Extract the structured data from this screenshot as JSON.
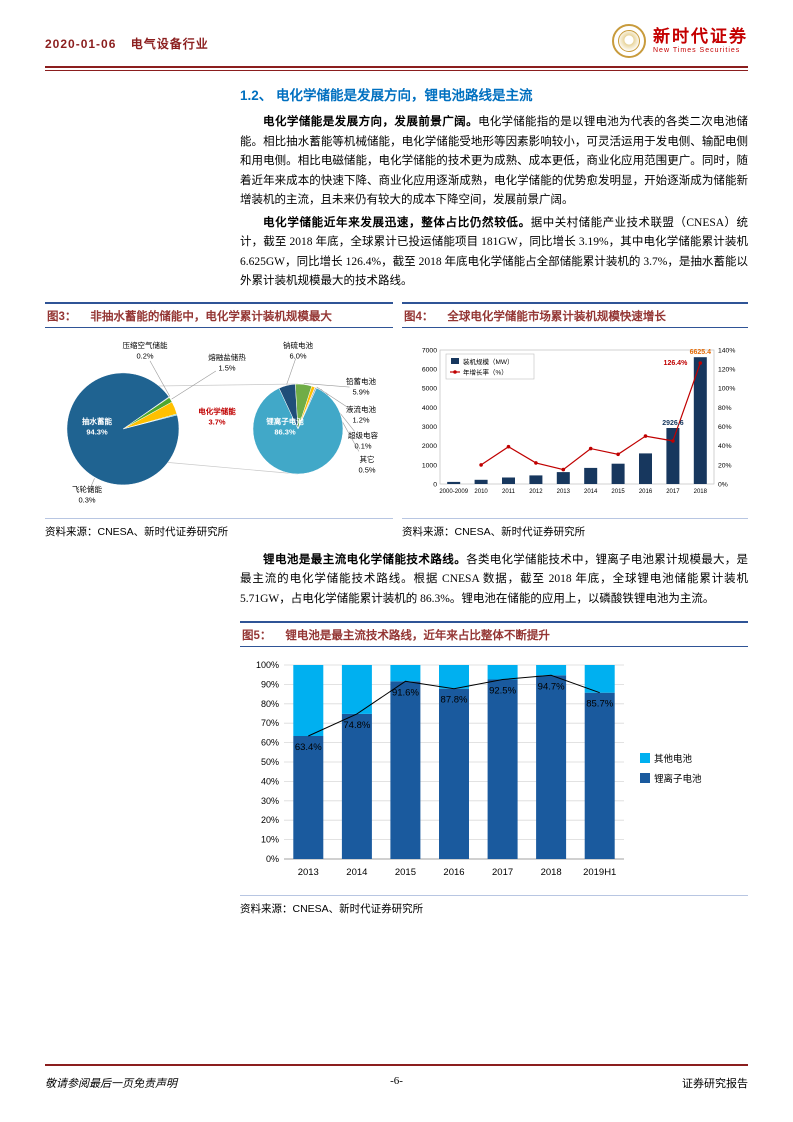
{
  "header": {
    "date": "2020-01-06",
    "industry": "电气设备行业",
    "brand": "新时代证券",
    "brand_en": "New Times Securities"
  },
  "section": {
    "number": "1.2、",
    "title": "电化学储能是发展方向，锂电池路线是主流"
  },
  "paragraphs": [
    {
      "lead": "电化学储能是发展方向，发展前景广阔。",
      "text": "电化学储能指的是以锂电池为代表的各类二次电池储能。相比抽水蓄能等机械储能，电化学储能受地形等因素影响较小，可灵活运用于发电侧、输配电侧和用电侧。相比电磁储能，电化学储能的技术更为成熟、成本更低，商业化应用范围更广。同时，随着近年来成本的快速下降、商业化应用逐渐成熟，电化学储能的优势愈发明显，开始逐渐成为储能新增装机的主流，且未来仍有较大的成本下降空间，发展前景广阔。"
    },
    {
      "lead": "电化学储能近年来发展迅速，整体占比仍然较低。",
      "text": "据中关村储能产业技术联盟（CNESA）统计，截至 2018 年底，全球累计已投运储能项目 181GW，同比增长 3.19%，其中电化学储能累计装机 6.625GW，同比增长 126.4%，截至 2018 年底电化学储能占全部储能累计装机的 3.7%，是抽水蓄能以外累计装机规模最大的技术路线。"
    },
    {
      "lead": "锂电池是最主流电化学储能技术路线。",
      "text": "各类电化学储能技术中，锂离子电池累计规模最大，是最主流的电化学储能技术路线。根据 CNESA 数据，截至 2018 年底，全球锂电池储能累计装机 5.71GW，占电化学储能累计装机的 86.3%。锂电池在储能的应用上，以磷酸铁锂电池为主流。"
    }
  ],
  "figures": {
    "fig3": {
      "label": "图3：",
      "title": "非抽水蓄能的储能中，电化学累计装机规模最大",
      "source": "资料来源：CNESA、新时代证券研究所"
    },
    "fig4": {
      "label": "图4：",
      "title": "全球电化学储能市场累计装机规模快速增长",
      "source": "资料来源：CNESA、新时代证券研究所"
    },
    "fig5": {
      "label": "图5：",
      "title": "锂电池是最主流技术路线，近年来占比整体不断提升",
      "source": "资料来源：CNESA、新时代证券研究所"
    }
  },
  "chart_data": [
    {
      "type": "pie",
      "figure": "图3",
      "slices": [
        {
          "label": "压缩空气储能",
          "value": 0.2,
          "pct": "0.2%",
          "color": "#A6A6A6"
        },
        {
          "label": "熔融盐储热",
          "value": 1.5,
          "pct": "1.5%",
          "color": "#4EA72E"
        },
        {
          "label": "电化学储能",
          "value": 3.7,
          "pct": "3.7%",
          "color": "#FFC000"
        },
        {
          "label": "飞轮储能",
          "value": 0.3,
          "pct": "0.3%",
          "color": "#31B6C4"
        },
        {
          "label": "抽水蓄能",
          "value": 94.3,
          "pct": "94.3%",
          "color": "#1F6391"
        }
      ]
    },
    {
      "type": "pie",
      "figure": "图3",
      "slices": [
        {
          "label": "钠硫电池",
          "value": 6.0,
          "pct": "6.0%",
          "color": "#1F4E79"
        },
        {
          "label": "铅蓄电池",
          "value": 5.9,
          "pct": "5.9%",
          "color": "#70AD47"
        },
        {
          "label": "液流电池",
          "value": 1.2,
          "pct": "1.2%",
          "color": "#FFC000"
        },
        {
          "label": "超级电容",
          "value": 0.1,
          "pct": "0.1%",
          "color": "#ED7D31"
        },
        {
          "label": "其它",
          "value": 0.5,
          "pct": "0.5%",
          "color": "#A6A6A6"
        },
        {
          "label": "锂离子电池",
          "value": 86.3,
          "pct": "86.3%",
          "color": "#41A8C8"
        }
      ]
    },
    {
      "type": "bar+line",
      "figure": "图4",
      "categories": [
        "2000-2009",
        "2010",
        "2011",
        "2012",
        "2013",
        "2014",
        "2015",
        "2016",
        "2017",
        "2018"
      ],
      "series": [
        {
          "name": "装机规模（MW）",
          "kind": "bar",
          "axis": "left",
          "color": "#17375E",
          "values": [
            110,
            220,
            340,
            450,
            620,
            840,
            1060,
            1600,
            2926.6,
            6625.4
          ]
        },
        {
          "name": "年增长率（%）",
          "kind": "line",
          "axis": "right",
          "color": "#C00000",
          "values": [
            null,
            20,
            39,
            22,
            15,
            37,
            31,
            50,
            45,
            126.4
          ]
        }
      ],
      "ylim_left": [
        0,
        7000
      ],
      "ylim_right": [
        0,
        140
      ],
      "yticks_left": [
        0,
        1000,
        2000,
        3000,
        4000,
        5000,
        6000,
        7000
      ],
      "yticks_right": [
        0,
        20,
        40,
        60,
        80,
        100,
        120,
        140
      ],
      "legend_position": "top-left",
      "data_labels": [
        {
          "category": "2017",
          "series": 0,
          "text": "2926.6",
          "color": "#17375E"
        },
        {
          "category": "2018",
          "series": 0,
          "text": "6625.4",
          "color": "#E36C09"
        },
        {
          "category": "2018",
          "series": 1,
          "text": "126.4%",
          "color": "#C00000"
        }
      ]
    },
    {
      "type": "stacked-bar",
      "figure": "图5",
      "categories": [
        "2013",
        "2014",
        "2015",
        "2016",
        "2017",
        "2018",
        "2019H1"
      ],
      "series": [
        {
          "name": "锂离子电池",
          "color": "#1A5A9E",
          "values": [
            63.4,
            74.8,
            91.6,
            87.8,
            92.5,
            94.7,
            85.7
          ]
        },
        {
          "name": "其他电池",
          "color": "#00B0F0",
          "values": [
            36.6,
            25.2,
            8.4,
            12.2,
            7.5,
            5.3,
            14.3
          ]
        }
      ],
      "labels": [
        "63.4%",
        "74.8%",
        "91.6%",
        "87.8%",
        "92.5%",
        "94.7%",
        "85.7%"
      ],
      "line_overlay": true,
      "ylim": [
        0,
        100
      ],
      "ytick_step": 10,
      "legend": [
        "其他电池",
        "锂离子电池"
      ],
      "legend_position": "right"
    }
  ],
  "footer": {
    "left": "敬请参阅最后一页免责声明",
    "page": "-6-",
    "right": "证券研究报告"
  }
}
